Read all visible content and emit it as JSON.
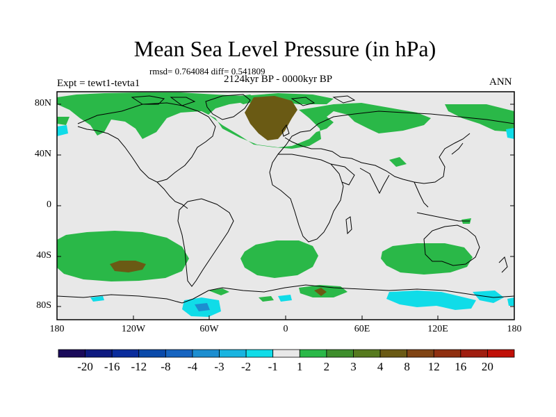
{
  "map": {
    "title": "Mean Sea Level Pressure (in hPa)",
    "stats_line": "rmsd= 0.764084 diff= 0.541809",
    "period_line": "2124kyr BP - 0000kyr BP",
    "experiment_label": "Expt = tewt1-tevta1",
    "season_label": "ANN",
    "background_color": "#e8e8e8",
    "lat_ticks": [
      "80N",
      "40N",
      "0",
      "40S",
      "80S"
    ],
    "lon_ticks": [
      "180",
      "120W",
      "60W",
      "0",
      "60E",
      "120E",
      "180"
    ]
  },
  "colorbar": {
    "colors": [
      "#1a0a5a",
      "#0e1a80",
      "#0a2c9c",
      "#0a4aaa",
      "#1664c0",
      "#1c8ed0",
      "#18b4e0",
      "#10dce8",
      "#e8e8e8",
      "#2ab848",
      "#3e8e2c",
      "#567a1e",
      "#6a5a14",
      "#804414",
      "#903010",
      "#a01e10",
      "#c01008"
    ],
    "labels": [
      "-20",
      "-16",
      "-12",
      "-8",
      "-4",
      "-3",
      "-2",
      "-1",
      "1",
      "2",
      "3",
      "4",
      "8",
      "12",
      "16",
      "20"
    ]
  }
}
